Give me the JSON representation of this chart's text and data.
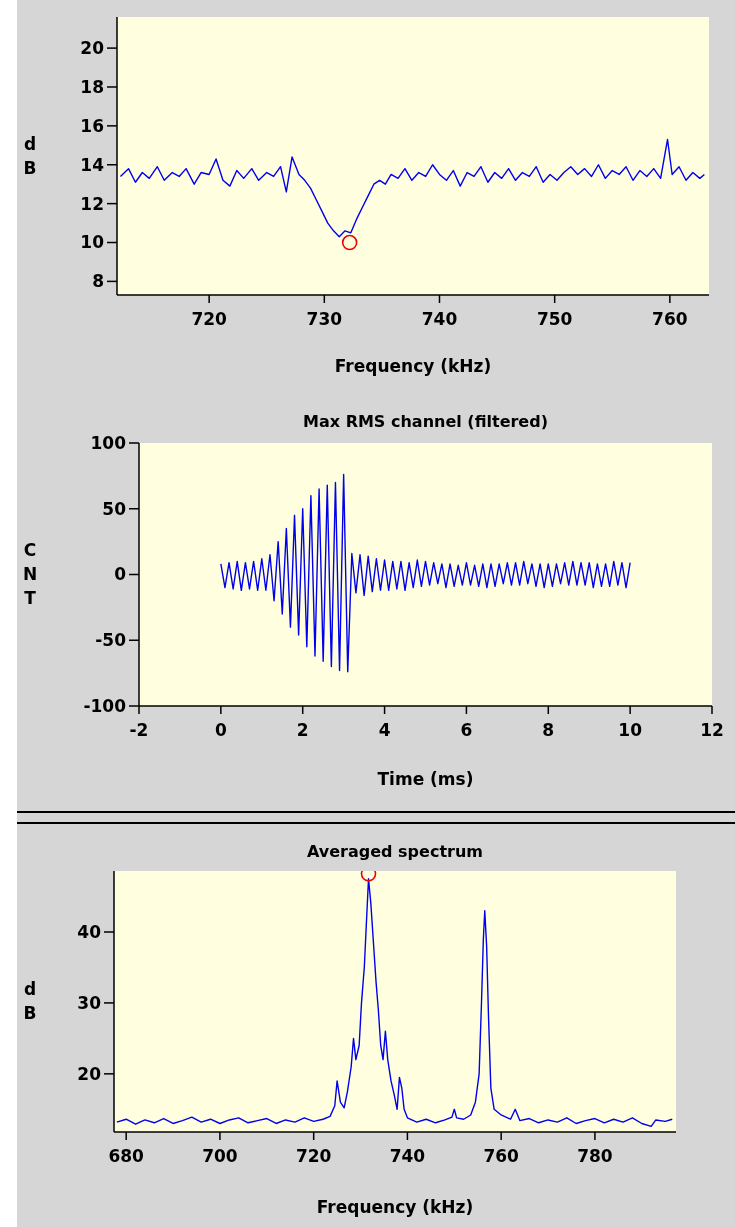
{
  "chart_data": [
    {
      "type": "line",
      "xlabel": "Frequency (kHz)",
      "ylabel": "dB",
      "xlim": [
        712,
        763.4
      ],
      "ylim": [
        7.3,
        21.6
      ],
      "xticks": [
        720,
        730,
        740,
        750,
        760
      ],
      "yticks": [
        8,
        10,
        12,
        14,
        16,
        18,
        20
      ],
      "series": [
        {
          "color": "#0000ee",
          "marker": "none",
          "x": [
            712.3,
            713,
            713.6,
            714.2,
            714.8,
            715.5,
            716.1,
            716.8,
            717.4,
            718,
            718.7,
            719.3,
            720,
            720.6,
            721.2,
            721.8,
            722.4,
            723,
            723.7,
            724.3,
            725,
            725.6,
            726.2,
            726.7,
            727.2,
            727.8,
            728.3,
            728.8,
            729.3,
            729.8,
            730.3,
            730.8,
            731.3,
            731.8,
            732.3,
            732.8,
            733.3,
            733.8,
            734.3,
            734.8,
            735.3,
            735.8,
            736.4,
            737,
            737.6,
            738.2,
            738.8,
            739.4,
            740,
            740.6,
            741.2,
            741.8,
            742.4,
            743,
            743.6,
            744.2,
            744.8,
            745.4,
            746,
            746.6,
            747.2,
            747.8,
            748.4,
            749,
            749.6,
            750.2,
            750.8,
            751.4,
            752,
            752.6,
            753.2,
            753.8,
            754.4,
            755,
            755.6,
            756.2,
            756.8,
            757.4,
            758,
            758.6,
            759.2,
            759.8,
            760.2,
            760.8,
            761.4,
            762,
            762.6,
            763
          ],
          "values": [
            13.4,
            13.8,
            13.1,
            13.6,
            13.3,
            13.9,
            13.2,
            13.6,
            13.4,
            13.8,
            13.0,
            13.6,
            13.5,
            14.3,
            13.2,
            12.9,
            13.7,
            13.3,
            13.8,
            13.2,
            13.6,
            13.4,
            13.9,
            12.6,
            14.4,
            13.5,
            13.2,
            12.8,
            12.2,
            11.6,
            11.0,
            10.6,
            10.3,
            10.6,
            10.5,
            11.2,
            11.8,
            12.4,
            13.0,
            13.2,
            13.0,
            13.5,
            13.3,
            13.8,
            13.2,
            13.6,
            13.4,
            14.0,
            13.5,
            13.2,
            13.7,
            12.9,
            13.6,
            13.4,
            13.9,
            13.1,
            13.6,
            13.3,
            13.8,
            13.2,
            13.6,
            13.4,
            13.9,
            13.1,
            13.5,
            13.2,
            13.6,
            13.9,
            13.5,
            13.8,
            13.4,
            14.0,
            13.3,
            13.7,
            13.5,
            13.9,
            13.2,
            13.7,
            13.4,
            13.8,
            13.3,
            15.3,
            13.5,
            13.9,
            13.2,
            13.6,
            13.3,
            13.5
          ]
        },
        {
          "type": "scatter",
          "color": "#ee0000",
          "marker": "circle",
          "x": [
            732.2
          ],
          "values": [
            10.0
          ]
        }
      ]
    },
    {
      "type": "line",
      "title": "Max RMS channel (filtered)",
      "xlabel": "Time (ms)",
      "ylabel": "CNT",
      "xlim": [
        -2,
        12
      ],
      "ylim": [
        -100,
        100
      ],
      "xticks": [
        -2,
        0,
        2,
        4,
        6,
        8,
        10,
        12
      ],
      "yticks": [
        -100,
        -50,
        0,
        50,
        100
      ],
      "series": [
        {
          "color": "#0000ee",
          "marker": "none",
          "x": [
            0,
            0.1,
            0.2,
            0.3,
            0.4,
            0.5,
            0.6,
            0.7,
            0.8,
            0.9,
            1,
            1.1,
            1.2,
            1.3,
            1.4,
            1.5,
            1.6,
            1.7,
            1.8,
            1.9,
            2,
            2.1,
            2.2,
            2.3,
            2.4,
            2.5,
            2.6,
            2.7,
            2.8,
            2.9,
            3,
            3.1,
            3.2,
            3.3,
            3.4,
            3.5,
            3.6,
            3.7,
            3.8,
            3.9,
            4,
            4.1,
            4.2,
            4.3,
            4.4,
            4.5,
            4.6,
            4.7,
            4.8,
            4.9,
            5,
            5.1,
            5.2,
            5.3,
            5.4,
            5.5,
            5.6,
            5.7,
            5.8,
            5.9,
            6,
            6.1,
            6.2,
            6.3,
            6.4,
            6.5,
            6.6,
            6.7,
            6.8,
            6.9,
            7,
            7.1,
            7.2,
            7.3,
            7.4,
            7.5,
            7.6,
            7.7,
            7.8,
            7.9,
            8,
            8.1,
            8.2,
            8.3,
            8.4,
            8.5,
            8.6,
            8.7,
            8.8,
            8.9,
            9,
            9.1,
            9.2,
            9.3,
            9.4,
            9.5,
            9.6,
            9.7,
            9.8,
            9.9,
            10
          ],
          "values": [
            8,
            -10,
            9,
            -11,
            10,
            -12,
            9,
            -11,
            10,
            -12,
            12,
            -12,
            15,
            -20,
            25,
            -30,
            35,
            -40,
            45,
            -46,
            50,
            -55,
            60,
            -62,
            65,
            -66,
            68,
            -70,
            70,
            -73,
            76,
            -74,
            16,
            -14,
            15,
            -16,
            14,
            -13,
            12,
            -12,
            11,
            -12,
            10,
            -11,
            10,
            -12,
            9,
            -10,
            11,
            -9,
            10,
            -8,
            9,
            -7,
            8,
            -10,
            8,
            -9,
            7,
            -8,
            9,
            -8,
            7,
            -9,
            8,
            -10,
            8,
            -9,
            8,
            -7,
            9,
            -8,
            9,
            -8,
            10,
            -7,
            8,
            -9,
            8,
            -10,
            8,
            -9,
            8,
            -7,
            9,
            -8,
            10,
            -8,
            9,
            -8,
            9,
            -10,
            8,
            -9,
            8,
            -9,
            10,
            -8,
            9,
            -10,
            9
          ]
        }
      ]
    },
    {
      "type": "line",
      "title": "Averaged spectrum",
      "xlabel": "Frequency (kHz)",
      "ylabel": "dB",
      "xlim": [
        677.4,
        797.3
      ],
      "ylim": [
        11.8,
        48.6
      ],
      "xticks": [
        680,
        700,
        720,
        740,
        760,
        780
      ],
      "yticks": [
        20,
        30,
        40
      ],
      "series": [
        {
          "color": "#0000ee",
          "marker": "none",
          "x": [
            678,
            680,
            682,
            684,
            686,
            688,
            690,
            692,
            694,
            696,
            698,
            700,
            702,
            704,
            706,
            708,
            710,
            712,
            714,
            716,
            718,
            720,
            722,
            723.5,
            724.5,
            725,
            725.7,
            726.5,
            727.2,
            728,
            728.5,
            729,
            729.7,
            730.2,
            730.8,
            731.3,
            731.7,
            732.2,
            732.8,
            733.3,
            733.8,
            734.3,
            734.8,
            735.3,
            735.8,
            736.5,
            737.2,
            737.8,
            738.3,
            738.8,
            739.3,
            740,
            742,
            744,
            746,
            748,
            749.5,
            750,
            750.5,
            752,
            753.5,
            754.5,
            755.3,
            755.8,
            756.2,
            756.5,
            756.9,
            757.3,
            757.8,
            758.5,
            760,
            762,
            763,
            764,
            766,
            768,
            770,
            772,
            774,
            776,
            778,
            780,
            782,
            784,
            786,
            788,
            790,
            792,
            793,
            795,
            796.5
          ],
          "values": [
            13.2,
            13.6,
            12.9,
            13.5,
            13.1,
            13.7,
            13.0,
            13.4,
            13.9,
            13.2,
            13.6,
            13.0,
            13.5,
            13.8,
            13.1,
            13.4,
            13.7,
            13.0,
            13.5,
            13.2,
            13.8,
            13.3,
            13.6,
            14.0,
            15.5,
            19.0,
            16,
            15.2,
            17.5,
            21,
            25,
            22,
            24,
            30,
            35,
            42,
            47.5,
            44,
            38,
            33,
            29,
            24,
            22,
            26,
            22,
            19,
            17,
            15,
            19.5,
            18,
            15,
            13.8,
            13.2,
            13.6,
            13.1,
            13.5,
            13.9,
            15.0,
            13.8,
            13.6,
            14.2,
            16,
            20,
            30,
            39,
            43,
            38,
            28,
            18,
            15,
            14.2,
            13.6,
            15,
            13.4,
            13.7,
            13.1,
            13.5,
            13.2,
            13.8,
            13.0,
            13.4,
            13.7,
            13.1,
            13.6,
            13.2,
            13.8,
            13.0,
            12.6,
            13.5,
            13.3,
            13.6
          ]
        },
        {
          "type": "scatter",
          "color": "#ee0000",
          "marker": "circle",
          "x": [
            731.7
          ],
          "values": [
            48.2
          ]
        }
      ]
    }
  ]
}
